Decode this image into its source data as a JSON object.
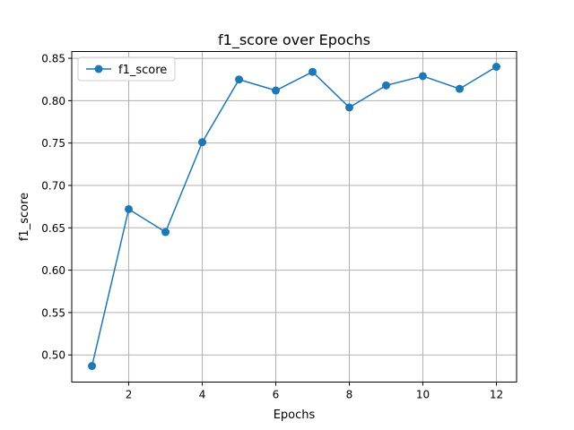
{
  "chart_data": {
    "type": "line",
    "title": "f1_score over Epochs",
    "xlabel": "Epochs",
    "ylabel": "f1_score",
    "xlim": [
      0.45,
      12.55
    ],
    "ylim": [
      0.468,
      0.858
    ],
    "xticks": [
      2,
      4,
      6,
      8,
      10,
      12
    ],
    "xtick_labels": [
      "2",
      "4",
      "6",
      "8",
      "10",
      "12"
    ],
    "yticks": [
      0.5,
      0.55,
      0.6,
      0.65,
      0.7,
      0.75,
      0.8,
      0.85
    ],
    "ytick_labels": [
      "0.50",
      "0.55",
      "0.60",
      "0.65",
      "0.70",
      "0.75",
      "0.80",
      "0.85"
    ],
    "grid": true,
    "legend_position": "top-left",
    "series": [
      {
        "name": "f1_score",
        "color": "#1f77b4",
        "marker": "circle",
        "x": [
          1,
          2,
          3,
          4,
          5,
          6,
          7,
          8,
          9,
          10,
          11,
          12
        ],
        "y": [
          0.487,
          0.672,
          0.645,
          0.751,
          0.825,
          0.812,
          0.834,
          0.792,
          0.818,
          0.829,
          0.814,
          0.84
        ]
      }
    ]
  }
}
